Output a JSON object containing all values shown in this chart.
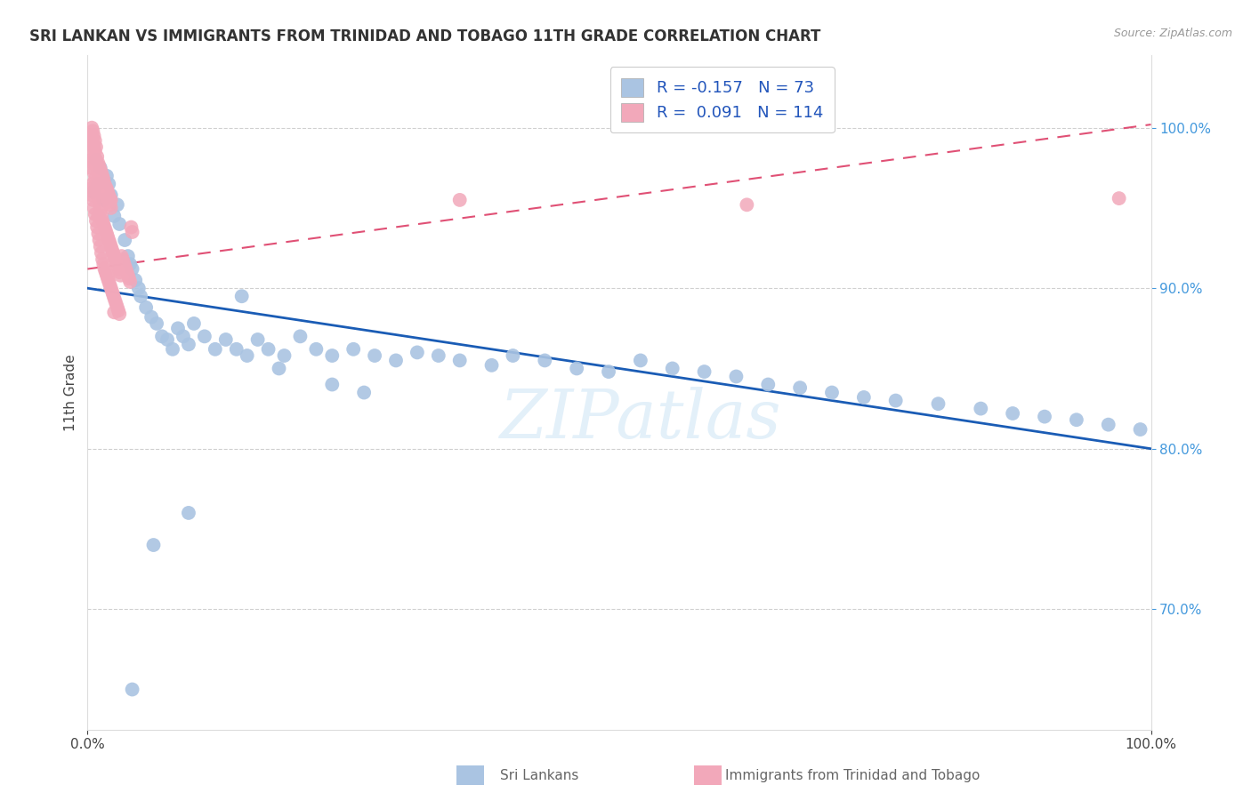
{
  "title": "SRI LANKAN VS IMMIGRANTS FROM TRINIDAD AND TOBAGO 11TH GRADE CORRELATION CHART",
  "source": "Source: ZipAtlas.com",
  "ylabel": "11th Grade",
  "watermark": "ZIPatlas",
  "legend_blue_label": "Sri Lankans",
  "legend_pink_label": "Immigrants from Trinidad and Tobago",
  "blue_R": -0.157,
  "blue_N": 73,
  "pink_R": 0.091,
  "pink_N": 114,
  "blue_color": "#aac4e2",
  "pink_color": "#f2a8ba",
  "blue_line_color": "#1a5cb5",
  "pink_line_color": "#e05075",
  "background_color": "#ffffff",
  "grid_color": "#d0d0d0",
  "xlim": [
    0.0,
    1.0
  ],
  "ylim": [
    0.625,
    1.045
  ],
  "blue_trend_x": [
    0.0,
    1.0
  ],
  "blue_trend_y": [
    0.9,
    0.8
  ],
  "pink_trend_x": [
    0.0,
    1.0
  ],
  "pink_trend_y": [
    0.912,
    1.002
  ],
  "blue_x": [
    0.005,
    0.008,
    0.01,
    0.012,
    0.015,
    0.018,
    0.02,
    0.022,
    0.025,
    0.028,
    0.03,
    0.035,
    0.038,
    0.04,
    0.042,
    0.045,
    0.048,
    0.05,
    0.055,
    0.06,
    0.065,
    0.07,
    0.075,
    0.08,
    0.085,
    0.09,
    0.095,
    0.1,
    0.11,
    0.12,
    0.13,
    0.14,
    0.15,
    0.16,
    0.17,
    0.185,
    0.2,
    0.215,
    0.23,
    0.25,
    0.27,
    0.29,
    0.31,
    0.33,
    0.35,
    0.38,
    0.4,
    0.43,
    0.46,
    0.49,
    0.52,
    0.55,
    0.58,
    0.61,
    0.64,
    0.67,
    0.7,
    0.73,
    0.76,
    0.8,
    0.84,
    0.87,
    0.9,
    0.93,
    0.96,
    0.99,
    0.23,
    0.26,
    0.18,
    0.145,
    0.095,
    0.062,
    0.042
  ],
  "blue_y": [
    0.96,
    0.98,
    0.965,
    0.975,
    0.955,
    0.97,
    0.965,
    0.958,
    0.945,
    0.952,
    0.94,
    0.93,
    0.92,
    0.915,
    0.912,
    0.905,
    0.9,
    0.895,
    0.888,
    0.882,
    0.878,
    0.87,
    0.868,
    0.862,
    0.875,
    0.87,
    0.865,
    0.878,
    0.87,
    0.862,
    0.868,
    0.862,
    0.858,
    0.868,
    0.862,
    0.858,
    0.87,
    0.862,
    0.858,
    0.862,
    0.858,
    0.855,
    0.86,
    0.858,
    0.855,
    0.852,
    0.858,
    0.855,
    0.85,
    0.848,
    0.855,
    0.85,
    0.848,
    0.845,
    0.84,
    0.838,
    0.835,
    0.832,
    0.83,
    0.828,
    0.825,
    0.822,
    0.82,
    0.818,
    0.815,
    0.812,
    0.84,
    0.835,
    0.85,
    0.895,
    0.76,
    0.74,
    0.65
  ],
  "pink_x": [
    0.002,
    0.003,
    0.004,
    0.004,
    0.005,
    0.005,
    0.006,
    0.006,
    0.007,
    0.007,
    0.008,
    0.008,
    0.009,
    0.009,
    0.01,
    0.01,
    0.011,
    0.011,
    0.012,
    0.012,
    0.013,
    0.013,
    0.014,
    0.014,
    0.015,
    0.015,
    0.016,
    0.016,
    0.017,
    0.017,
    0.018,
    0.018,
    0.019,
    0.019,
    0.02,
    0.02,
    0.021,
    0.021,
    0.022,
    0.022,
    0.003,
    0.004,
    0.005,
    0.006,
    0.007,
    0.008,
    0.009,
    0.01,
    0.011,
    0.012,
    0.013,
    0.014,
    0.015,
    0.016,
    0.017,
    0.018,
    0.019,
    0.02,
    0.021,
    0.022,
    0.023,
    0.024,
    0.025,
    0.026,
    0.027,
    0.028,
    0.029,
    0.03,
    0.031,
    0.032,
    0.033,
    0.034,
    0.035,
    0.036,
    0.037,
    0.038,
    0.039,
    0.04,
    0.041,
    0.042,
    0.003,
    0.004,
    0.005,
    0.006,
    0.007,
    0.008,
    0.009,
    0.01,
    0.011,
    0.012,
    0.013,
    0.014,
    0.015,
    0.016,
    0.017,
    0.018,
    0.019,
    0.02,
    0.021,
    0.022,
    0.023,
    0.024,
    0.025,
    0.026,
    0.027,
    0.028,
    0.029,
    0.03,
    0.35,
    0.62,
    0.97,
    0.025,
    0.01,
    0.005
  ],
  "pink_y": [
    0.985,
    0.992,
    0.995,
    1.0,
    0.998,
    0.993,
    0.988,
    0.995,
    0.985,
    0.992,
    0.98,
    0.988,
    0.975,
    0.982,
    0.972,
    0.978,
    0.97,
    0.976,
    0.968,
    0.974,
    0.968,
    0.972,
    0.965,
    0.97,
    0.962,
    0.968,
    0.96,
    0.965,
    0.958,
    0.963,
    0.958,
    0.962,
    0.956,
    0.96,
    0.954,
    0.958,
    0.952,
    0.956,
    0.95,
    0.955,
    0.975,
    0.98,
    0.978,
    0.972,
    0.968,
    0.965,
    0.96,
    0.956,
    0.952,
    0.948,
    0.945,
    0.942,
    0.94,
    0.938,
    0.936,
    0.934,
    0.932,
    0.93,
    0.928,
    0.926,
    0.924,
    0.922,
    0.92,
    0.918,
    0.916,
    0.914,
    0.912,
    0.91,
    0.908,
    0.92,
    0.918,
    0.916,
    0.914,
    0.912,
    0.91,
    0.908,
    0.906,
    0.904,
    0.938,
    0.935,
    0.962,
    0.958,
    0.955,
    0.95,
    0.946,
    0.942,
    0.938,
    0.934,
    0.93,
    0.926,
    0.922,
    0.918,
    0.915,
    0.912,
    0.91,
    0.908,
    0.906,
    0.904,
    0.902,
    0.9,
    0.898,
    0.896,
    0.894,
    0.892,
    0.89,
    0.888,
    0.886,
    0.884,
    0.955,
    0.952,
    0.956,
    0.885,
    0.945,
    0.965
  ]
}
